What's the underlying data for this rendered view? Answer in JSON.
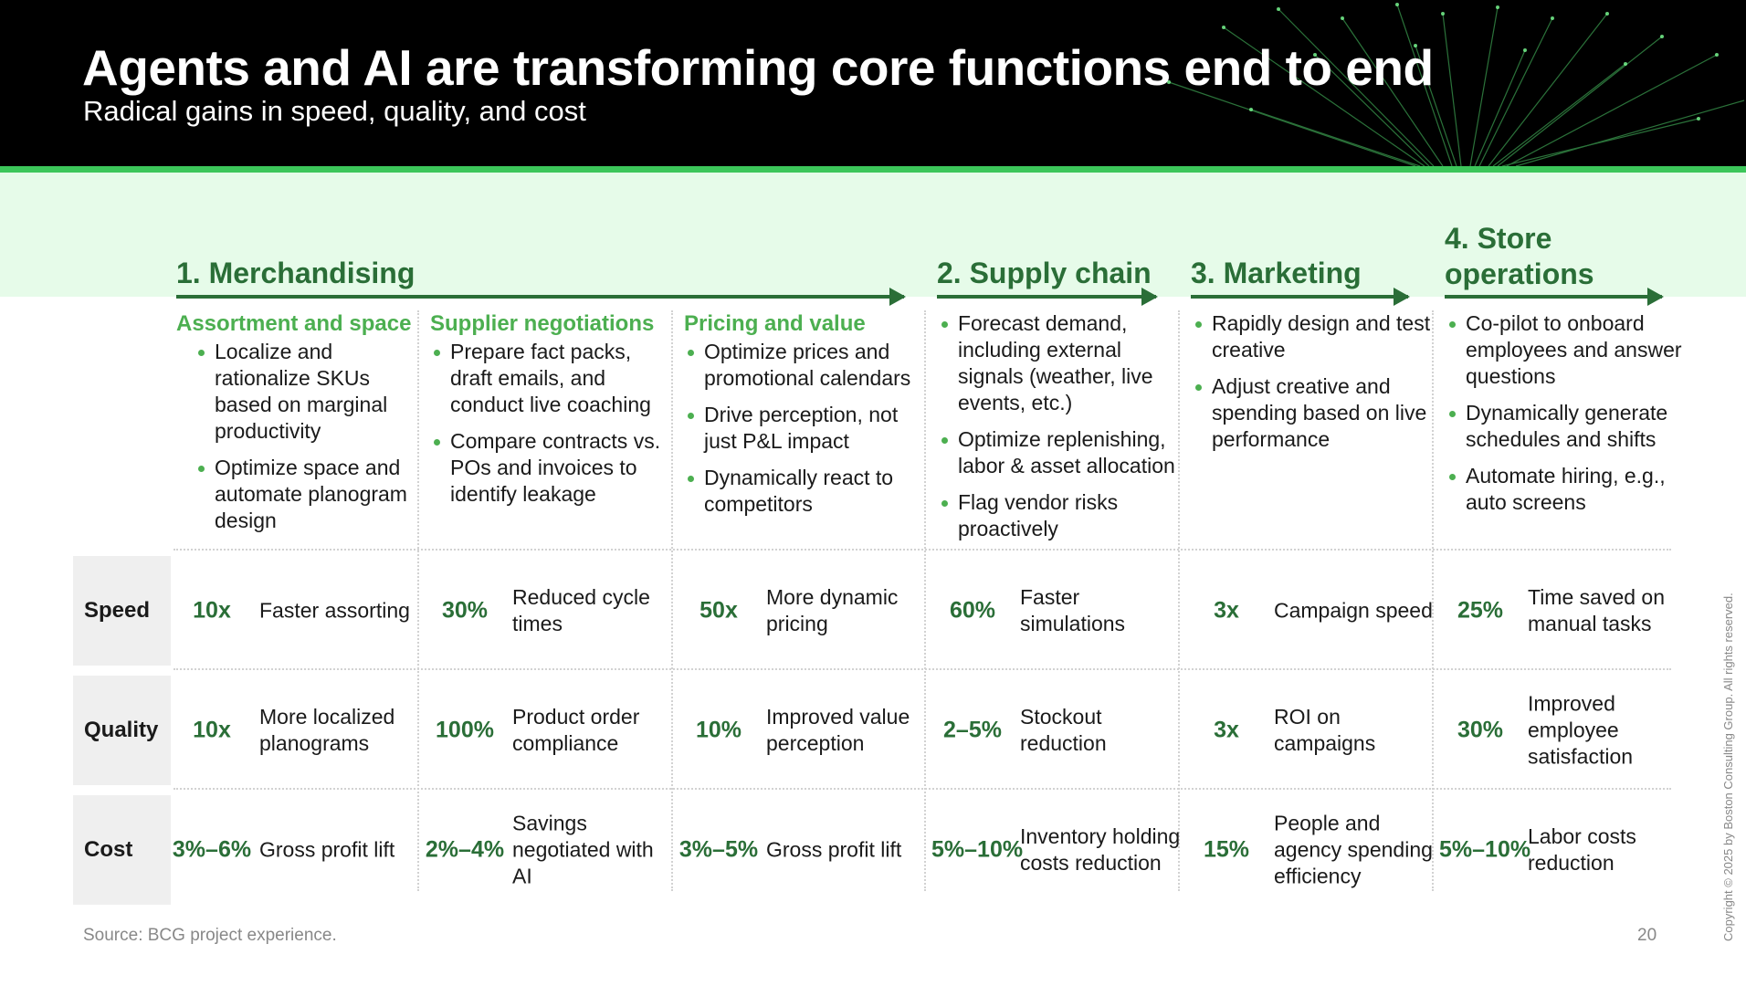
{
  "title": "Agents and AI are transforming core functions end to end",
  "subtitle": "Radical gains in speed, quality, and cost",
  "sections": [
    {
      "label": "1. Merchandising"
    },
    {
      "label": "2. Supply chain"
    },
    {
      "label": "3. Marketing"
    },
    {
      "label": "4. Store operations"
    }
  ],
  "columns": [
    {
      "title": "Assortment and space",
      "bullets": [
        "Localize and rationalize SKUs based on marginal productivity",
        "Optimize space and automate planogram design"
      ]
    },
    {
      "title": "Supplier negotiations",
      "bullets": [
        "Prepare fact packs, draft emails, and conduct live coaching",
        "Compare contracts vs. POs and invoices to identify leakage"
      ]
    },
    {
      "title": "Pricing and value",
      "bullets": [
        "Optimize prices and promotional calendars",
        "Drive perception, not just P&L impact",
        "Dynamically react to competitors"
      ]
    },
    {
      "title": "",
      "bullets": [
        "Forecast demand, including external signals (weather, live events, etc.)",
        "Optimize replenishing, labor & asset allocation",
        "Flag vendor risks proactively"
      ]
    },
    {
      "title": "",
      "bullets": [
        "Rapidly design and test creative",
        "Adjust creative and spending based on live performance"
      ]
    },
    {
      "title": "",
      "bullets": [
        "Co-pilot to onboard employees and answer questions",
        "Dynamically generate schedules and shifts",
        "Automate hiring, e.g., auto screens"
      ]
    }
  ],
  "rows": [
    {
      "label": "Speed",
      "cells": [
        {
          "value": "10x",
          "desc": "Faster assorting"
        },
        {
          "value": "30%",
          "desc": "Reduced cycle times"
        },
        {
          "value": "50x",
          "desc": "More dynamic pricing"
        },
        {
          "value": "60%",
          "desc": "Faster simulations"
        },
        {
          "value": "3x",
          "desc": "Campaign speed"
        },
        {
          "value": "25%",
          "desc": "Time saved on manual tasks"
        }
      ]
    },
    {
      "label": "Quality",
      "cells": [
        {
          "value": "10x",
          "desc": "More localized planograms"
        },
        {
          "value": "100%",
          "desc": "Product order compliance"
        },
        {
          "value": "10%",
          "desc": "Improved value perception"
        },
        {
          "value": "2–5%",
          "desc": "Stockout reduction"
        },
        {
          "value": "3x",
          "desc": "ROI on campaigns"
        },
        {
          "value": "30%",
          "desc": "Improved employee satisfaction"
        }
      ]
    },
    {
      "label": "Cost",
      "cells": [
        {
          "value": "3%–6%",
          "desc": "Gross profit lift"
        },
        {
          "value": "2%–4%",
          "desc": "Savings negotiated with AI"
        },
        {
          "value": "3%–5%",
          "desc": "Gross profit lift"
        },
        {
          "value": "5%–10%",
          "desc": "Inventory holding costs reduction"
        },
        {
          "value": "15%",
          "desc": "People and agency spending efficiency"
        },
        {
          "value": "5%–10%",
          "desc": "Labor costs reduction"
        }
      ]
    }
  ],
  "source": "Source: BCG project experience.",
  "page_number": "20",
  "copyright": "Copyright © 2025 by Boston Consulting Group. All rights reserved.",
  "colors": {
    "header_bg": "#000000",
    "accent_green": "#3cc65a",
    "dark_green": "#2a6e37",
    "light_green": "#4caf50",
    "mint": "#e6fbe9"
  }
}
